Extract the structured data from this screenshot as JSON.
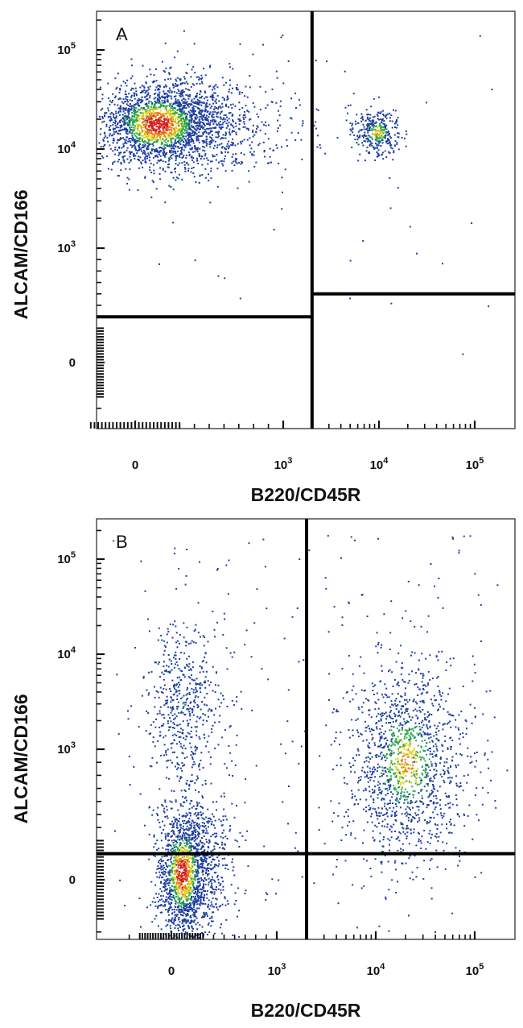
{
  "chart_data": [
    {
      "type": "scatter",
      "panel_label": "A",
      "xlabel": "B220/CD45R",
      "ylabel": "ALCAM/CD166",
      "x_scale": "biexponential",
      "y_scale": "biexponential",
      "x_ticks": [
        {
          "base": "0",
          "exp": "",
          "value": 0
        },
        {
          "base": "10",
          "exp": "3",
          "value": 1000
        },
        {
          "base": "10",
          "exp": "4",
          "value": 10000
        },
        {
          "base": "10",
          "exp": "5",
          "value": 100000
        }
      ],
      "y_ticks": [
        {
          "base": "0",
          "exp": "",
          "value": 0
        },
        {
          "base": "10",
          "exp": "3",
          "value": 1000
        },
        {
          "base": "10",
          "exp": "4",
          "value": 10000
        },
        {
          "base": "10",
          "exp": "5",
          "value": 100000
        }
      ],
      "gates": {
        "x_divider": 2000,
        "y_left_divider": 400,
        "y_right_divider": 600
      },
      "populations": [
        {
          "x_center": 150,
          "y_center": 18000,
          "density": "high",
          "count": 2600
        },
        {
          "x_center": 9500,
          "y_center": 15000,
          "density": "medium",
          "count": 360
        }
      ],
      "density_colors": [
        "#1f3fa0",
        "#2aa84a",
        "#e0d21e",
        "#e27a1c",
        "#d41e1e"
      ]
    },
    {
      "type": "scatter",
      "panel_label": "B",
      "xlabel": "B220/CD45R",
      "ylabel": "ALCAM/CD166",
      "x_scale": "biexponential",
      "y_scale": "biexponential",
      "x_ticks": [
        {
          "base": "0",
          "exp": "",
          "value": 0
        },
        {
          "base": "10",
          "exp": "3",
          "value": 1000
        },
        {
          "base": "10",
          "exp": "4",
          "value": 10000
        },
        {
          "base": "10",
          "exp": "5",
          "value": 100000
        }
      ],
      "y_ticks": [
        {
          "base": "0",
          "exp": "",
          "value": 0
        },
        {
          "base": "10",
          "exp": "3",
          "value": 1000
        },
        {
          "base": "10",
          "exp": "4",
          "value": 10000
        },
        {
          "base": "10",
          "exp": "5",
          "value": 100000
        }
      ],
      "gates": {
        "x_divider": 2000,
        "y_divider": 200
      },
      "populations": [
        {
          "x_center": 100,
          "y_center": 60,
          "density": "high",
          "count": 1800
        },
        {
          "x_center": 20000,
          "y_center": 900,
          "density": "medium",
          "count": 1400
        },
        {
          "x_center": 100,
          "y_center": 3000,
          "density": "low",
          "count": 500
        }
      ],
      "density_colors": [
        "#1f3fa0",
        "#2aa84a",
        "#e0d21e",
        "#e27a1c",
        "#d41e1e"
      ]
    }
  ]
}
